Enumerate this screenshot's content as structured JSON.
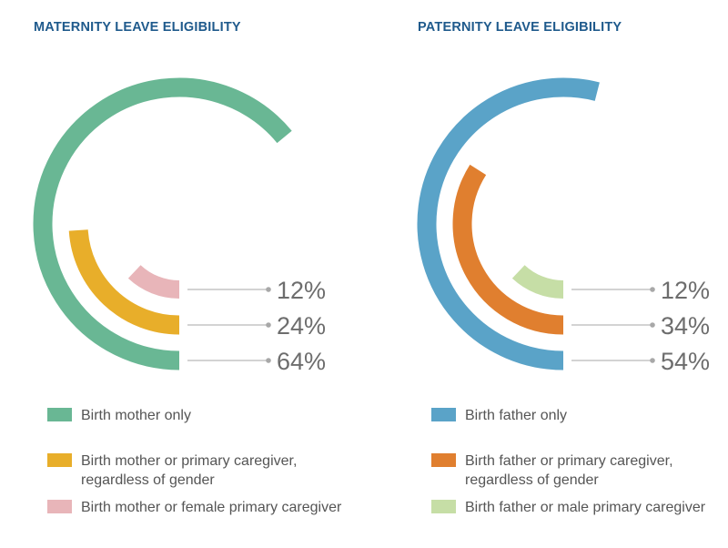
{
  "chart_data": [
    {
      "type": "radial-bar",
      "title": "MATERNITY LEAVE ELIGIBILITY",
      "categories": [
        "Birth mother only",
        "Birth mother or primary caregiver, regardless of gender",
        "Birth mother or female primary caregiver"
      ],
      "values": [
        64,
        24,
        12
      ],
      "value_labels": [
        "64%",
        "24%",
        "12%"
      ],
      "colors": [
        "#69b794",
        "#e8ae2a",
        "#e8b5b9"
      ],
      "legend": "bottom"
    },
    {
      "type": "radial-bar",
      "title": "PATERNITY LEAVE ELIGIBILITY",
      "categories": [
        "Birth father only",
        "Birth father or primary caregiver, regardless of gender",
        "Birth father or male primary caregiver"
      ],
      "values": [
        54,
        34,
        12
      ],
      "value_labels": [
        "54%",
        "34%",
        "12%"
      ],
      "colors": [
        "#5aa3c8",
        "#e07f2f",
        "#c6dea6"
      ],
      "legend": "bottom"
    }
  ]
}
